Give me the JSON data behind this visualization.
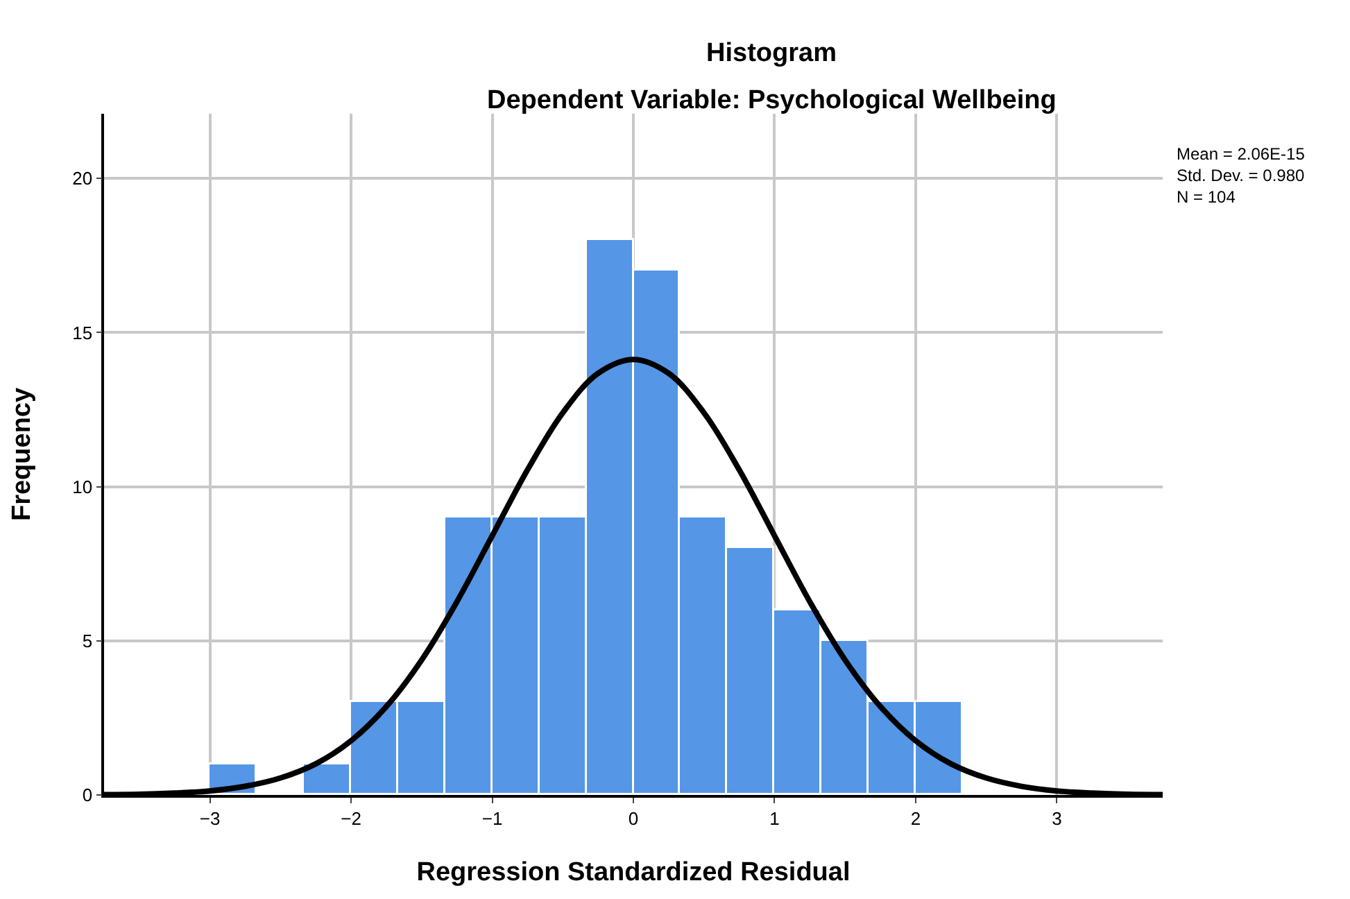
{
  "chart_data": {
    "type": "histogram",
    "title": "Histogram",
    "subtitle": "Dependent Variable: Psychological Wellbeing",
    "xlabel": "Regression Standardized Residual",
    "ylabel": "Frequency",
    "bins": [
      -3,
      -2.667,
      -2.333,
      -2,
      -1.667,
      -1.333,
      -1,
      -0.667,
      -0.333,
      0,
      0.333,
      0.667,
      1,
      1.333,
      1.667,
      2,
      2.333
    ],
    "values": [
      1,
      0,
      1,
      3,
      3,
      9,
      9,
      9,
      18,
      17,
      9,
      8,
      6,
      5,
      3,
      3
    ],
    "color": "#5596e6",
    "series": [
      {
        "type": "line",
        "color": "#000000",
        "x": [
          -3.75,
          -3.5,
          -3.25,
          -3,
          -2.75,
          -2.5,
          -2.25,
          -2,
          -1.75,
          -1.5,
          -1.25,
          -1,
          -0.75,
          -0.5,
          -0.25,
          0,
          0.25,
          0.5,
          0.75,
          1,
          1.25,
          1.5,
          1.75,
          2,
          2.25,
          2.5,
          2.75,
          3,
          3.25,
          3.5,
          3.75
        ],
        "values": [
          0.01,
          0.02,
          0.06,
          0.13,
          0.28,
          0.55,
          1.01,
          1.76,
          2.87,
          4.38,
          6.27,
          8.41,
          10.55,
          12.4,
          13.68,
          14.13,
          13.68,
          12.4,
          10.55,
          8.41,
          6.27,
          4.38,
          2.87,
          1.76,
          1.01,
          0.55,
          0.28,
          0.13,
          0.06,
          0.02,
          0.01
        ]
      }
    ],
    "annotations": [
      "Mean = 2.06E-15\nStd. Dev. = 0.980\nN = 104"
    ],
    "xlim": [
      -3.75,
      3.75
    ],
    "xticks": [
      -3,
      -2,
      -1,
      0,
      1,
      2,
      3
    ],
    "ylim": [
      0,
      22.1
    ],
    "yticks": [
      0,
      5,
      10,
      15,
      20
    ],
    "grid": true
  }
}
